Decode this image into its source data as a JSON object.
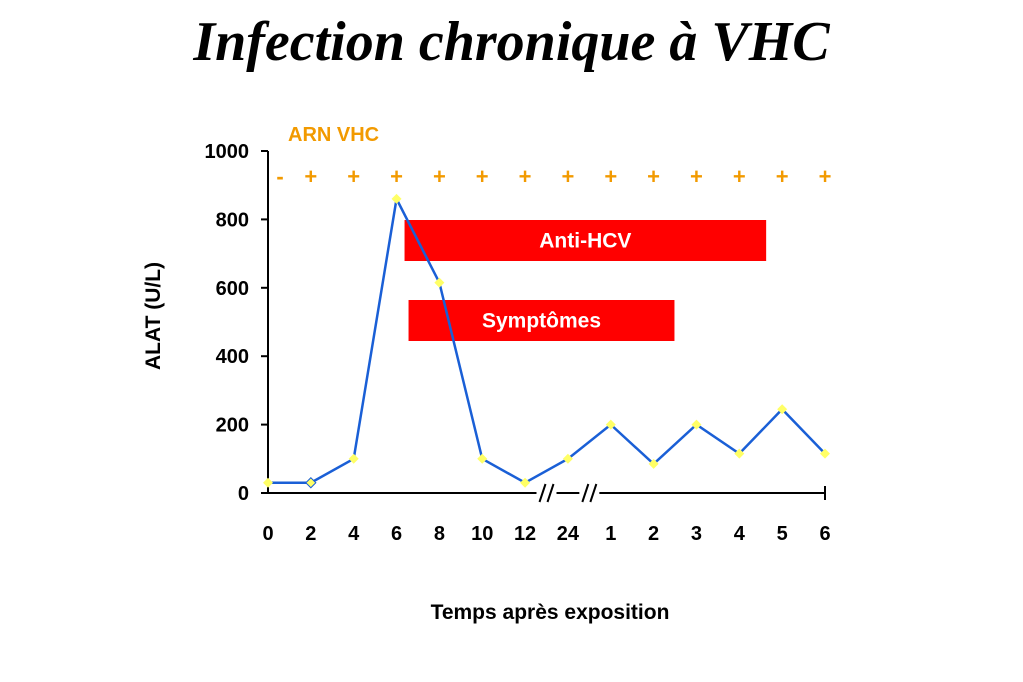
{
  "title": "Infection chronique à VHC",
  "chart_data": {
    "type": "line",
    "xlabel": "Temps après exposition",
    "ylabel": "ALAT (U/L)",
    "yticks": [
      0,
      200,
      400,
      600,
      800,
      1000
    ],
    "ylim": [
      0,
      1000
    ],
    "categories": [
      "0",
      "2",
      "4",
      "6",
      "8",
      "10",
      "12",
      "24",
      "1",
      "2",
      "3",
      "4",
      "5",
      "6"
    ],
    "axis_breaks_after": [
      "12",
      "24"
    ],
    "series": [
      {
        "values": [
          30,
          30,
          100,
          860,
          615,
          100,
          30,
          100,
          200,
          85,
          200,
          115,
          245,
          115
        ],
        "color": "#1a5fd6",
        "marker_color": "#ffff66"
      }
    ],
    "arn": {
      "label": "ARN VHC",
      "signs": [
        "-",
        "+",
        "+",
        "+",
        "+",
        "+",
        "+",
        "+",
        "+",
        "+",
        "+",
        "+",
        "+",
        "+"
      ],
      "color": "#f29a00"
    },
    "bars": [
      {
        "label": "Anti-HCV",
        "start": "6",
        "end": "5",
        "color": "#ff0000"
      },
      {
        "label": "Symptômes",
        "start": "6",
        "end": "3",
        "color": "#ff0000"
      }
    ],
    "grid": false
  }
}
